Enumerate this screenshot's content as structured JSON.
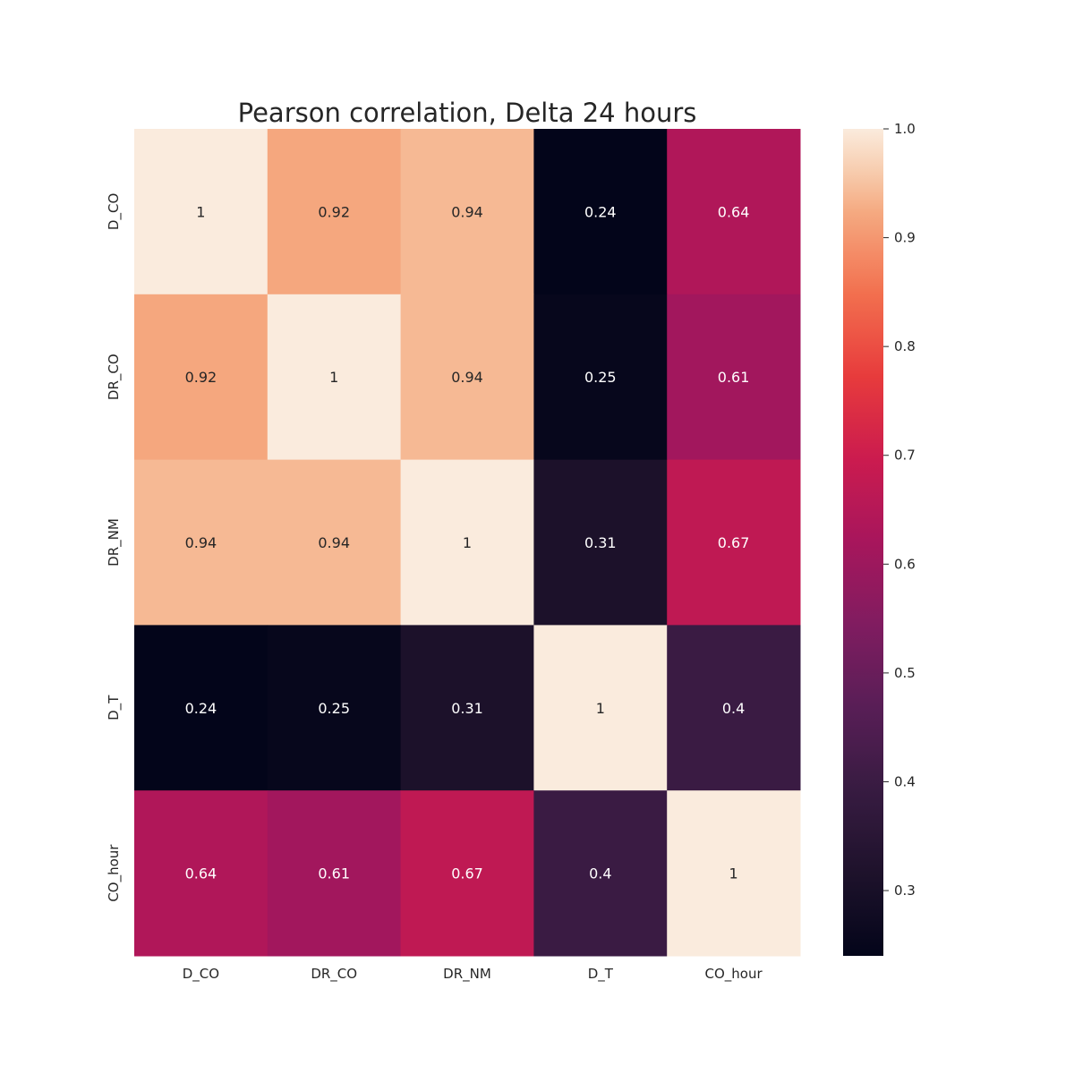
{
  "chart_data": {
    "type": "heatmap",
    "title": "Pearson correlation, Delta 24 hours",
    "xlabel": "",
    "ylabel": "",
    "x_categories": [
      "D_CO",
      "DR_CO",
      "DR_NM",
      "D_T",
      "CO_hour"
    ],
    "y_categories": [
      "D_CO",
      "DR_CO",
      "DR_NM",
      "D_T",
      "CO_hour"
    ],
    "values": [
      [
        1,
        0.92,
        0.94,
        0.24,
        0.64
      ],
      [
        0.92,
        1,
        0.94,
        0.25,
        0.61
      ],
      [
        0.94,
        0.94,
        1,
        0.31,
        0.67
      ],
      [
        0.24,
        0.25,
        0.31,
        1,
        0.4
      ],
      [
        0.64,
        0.61,
        0.67,
        0.4,
        1
      ]
    ],
    "annotations": [
      [
        "1",
        "0.92",
        "0.94",
        "0.24",
        "0.64"
      ],
      [
        "0.92",
        "1",
        "0.94",
        "0.25",
        "0.61"
      ],
      [
        "0.94",
        "0.94",
        "1",
        "0.31",
        "0.67"
      ],
      [
        "0.24",
        "0.25",
        "0.31",
        "1",
        "0.4"
      ],
      [
        "0.64",
        "0.61",
        "0.67",
        "0.4",
        "1"
      ]
    ],
    "colorbar": {
      "range": [
        0.24,
        1.0
      ],
      "ticks": [
        0.3,
        0.4,
        0.5,
        0.6,
        0.7,
        0.8,
        0.9,
        1.0
      ],
      "tick_labels": [
        "0.3",
        "0.4",
        "0.5",
        "0.6",
        "0.7",
        "0.8",
        "0.9",
        "1.0"
      ],
      "colormap": "rocket"
    },
    "grid": false,
    "legend": "colorbar-right"
  }
}
